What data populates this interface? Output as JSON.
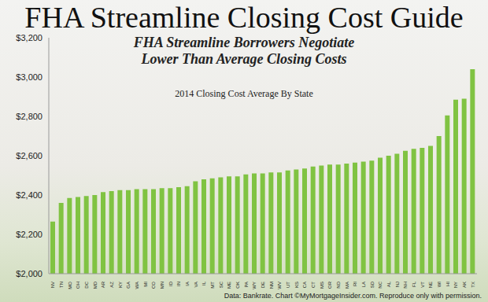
{
  "chart_data": {
    "type": "bar",
    "title": "FHA Streamline Closing Cost Guide",
    "subtitle": "FHA Streamline Borrowers Negotiate Lower Than Average Closing Costs",
    "annotations": [
      "2014 Closing Cost Average By State",
      "Data: Bankrate. Chart ©MyMortgageInsider.com. Reproduce only with permission."
    ],
    "categories": [
      "NV",
      "TN",
      "MO",
      "OH",
      "DC",
      "MD",
      "AR",
      "AZ",
      "KY",
      "GA",
      "WA",
      "MI",
      "CO",
      "MN",
      "ID",
      "IN",
      "IA",
      "VA",
      "IL",
      "MT",
      "SC",
      "ME",
      "OK",
      "PA",
      "WY",
      "DE",
      "NM",
      "WV",
      "UT",
      "KS",
      "CA",
      "CT",
      "MS",
      "OR",
      "ND",
      "MA",
      "RI",
      "LA",
      "SD",
      "NC",
      "AL",
      "NJ",
      "NH",
      "FL",
      "VT",
      "NE",
      "WI",
      "HI",
      "NY",
      "AK",
      "TX"
    ],
    "values": [
      2265,
      2360,
      2385,
      2390,
      2395,
      2400,
      2415,
      2420,
      2425,
      2425,
      2430,
      2430,
      2430,
      2435,
      2435,
      2440,
      2445,
      2470,
      2480,
      2485,
      2490,
      2495,
      2495,
      2505,
      2510,
      2510,
      2515,
      2515,
      2525,
      2530,
      2535,
      2545,
      2550,
      2555,
      2555,
      2560,
      2565,
      2570,
      2575,
      2590,
      2600,
      2610,
      2625,
      2635,
      2640,
      2650,
      2700,
      2805,
      2885,
      2890,
      3040
    ],
    "color": "#80c342",
    "ylim": [
      2000,
      3200
    ],
    "yticks": [
      {
        "value": 2000,
        "label": "$2,000"
      },
      {
        "value": 2200,
        "label": "$2,200"
      },
      {
        "value": 2400,
        "label": "$2,400"
      },
      {
        "value": 2600,
        "label": "$2,600"
      },
      {
        "value": 2800,
        "label": "$2,800"
      },
      {
        "value": 3000,
        "label": "$3,000"
      },
      {
        "value": 3200,
        "label": "$3,200"
      }
    ],
    "grid": false,
    "data_labels": false
  }
}
